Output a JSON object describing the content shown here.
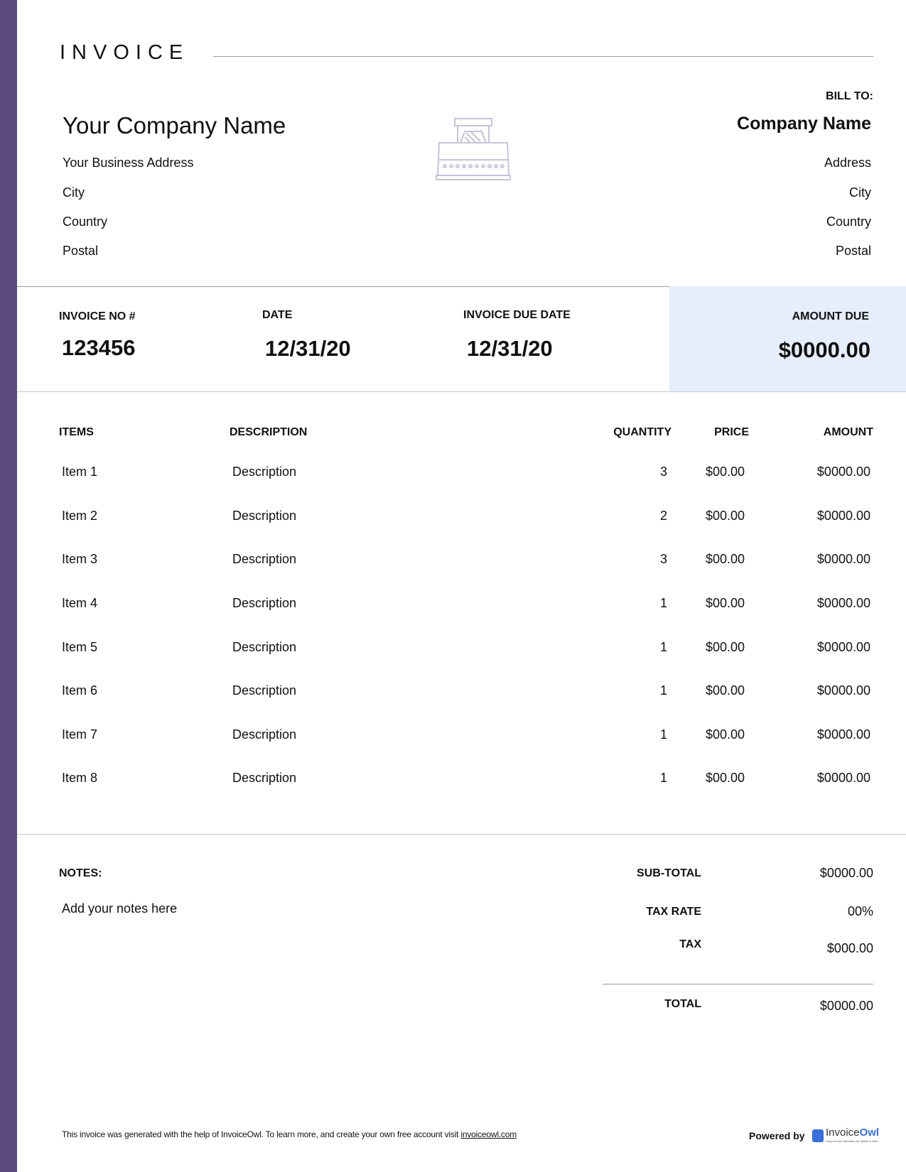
{
  "title": "INVOICE",
  "from": {
    "company": "Your Company Name",
    "address": "Your Business Address",
    "city": "City",
    "country": "Country",
    "postal": "Postal"
  },
  "bill_to": {
    "label": "BILL TO:",
    "company": "Company Name",
    "address": "Address",
    "city": "City",
    "country": "Country",
    "postal": "Postal"
  },
  "meta": {
    "invoice_no_label": "INVOICE NO #",
    "invoice_no": "123456",
    "date_label": "DATE",
    "date": "12/31/20",
    "due_label": "INVOICE DUE DATE",
    "due": "12/31/20",
    "amount_due_label": "AMOUNT DUE",
    "amount_due": "$0000.00"
  },
  "table": {
    "headers": [
      "ITEMS",
      "DESCRIPTION",
      "QUANTITY",
      "PRICE",
      "AMOUNT"
    ],
    "rows": [
      [
        "Item 1",
        "Description",
        "3",
        "$00.00",
        "$0000.00"
      ],
      [
        "Item 2",
        "Description",
        "2",
        "$00.00",
        "$0000.00"
      ],
      [
        "Item 3",
        "Description",
        "3",
        "$00.00",
        "$0000.00"
      ],
      [
        "Item 4",
        "Description",
        "1",
        "$00.00",
        "$0000.00"
      ],
      [
        "Item 5",
        "Description",
        "1",
        "$00.00",
        "$0000.00"
      ],
      [
        "Item 6",
        "Description",
        "1",
        "$00.00",
        "$0000.00"
      ],
      [
        "Item 7",
        "Description",
        "1",
        "$00.00",
        "$0000.00"
      ],
      [
        "Item 8",
        "Description",
        "1",
        "$00.00",
        "$0000.00"
      ]
    ]
  },
  "notes": {
    "label": "NOTES:",
    "text": "Add your notes here"
  },
  "totals": {
    "subtotal_label": "SUB-TOTAL",
    "subtotal": "$0000.00",
    "taxrate_label": "TAX RATE",
    "taxrate": "00%",
    "tax_label": "TAX",
    "tax": "$000.00",
    "total_label": "TOTAL",
    "total": "$0000.00"
  },
  "footer": {
    "text": "This invoice was generated with the help of InvoiceOwl. To learn more, and create your own free account visit ",
    "link": "invoiceowl.com",
    "powered": "Powered by",
    "brand_a": "Invoice",
    "brand_b": "Owl",
    "brand_tag": "Easy Invoice Generator for Mobile & Web"
  },
  "colors": {
    "accent": "#5c4a7d",
    "amount_bg": "#e6edfb",
    "brand": "#3a6fd8"
  }
}
